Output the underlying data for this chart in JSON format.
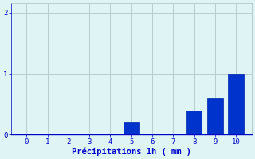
{
  "categories": [
    0,
    1,
    2,
    3,
    4,
    5,
    6,
    7,
    8,
    9,
    10
  ],
  "values": [
    0,
    0,
    0,
    0,
    0,
    0.2,
    0,
    0,
    0.4,
    0.6,
    1.0
  ],
  "bar_color": "#0033cc",
  "bar_edge_color": "#0022aa",
  "xlabel": "Précipitations 1h ( mm )",
  "ylim": [
    0,
    2.15
  ],
  "yticks": [
    0,
    1,
    2
  ],
  "xticks": [
    0,
    1,
    2,
    3,
    4,
    5,
    6,
    7,
    8,
    9,
    10
  ],
  "background_color": "#dff4f4",
  "grid_color": "#b0c8c8",
  "text_color": "#0000cc",
  "tick_fontsize": 6.5,
  "label_fontsize": 7.5
}
